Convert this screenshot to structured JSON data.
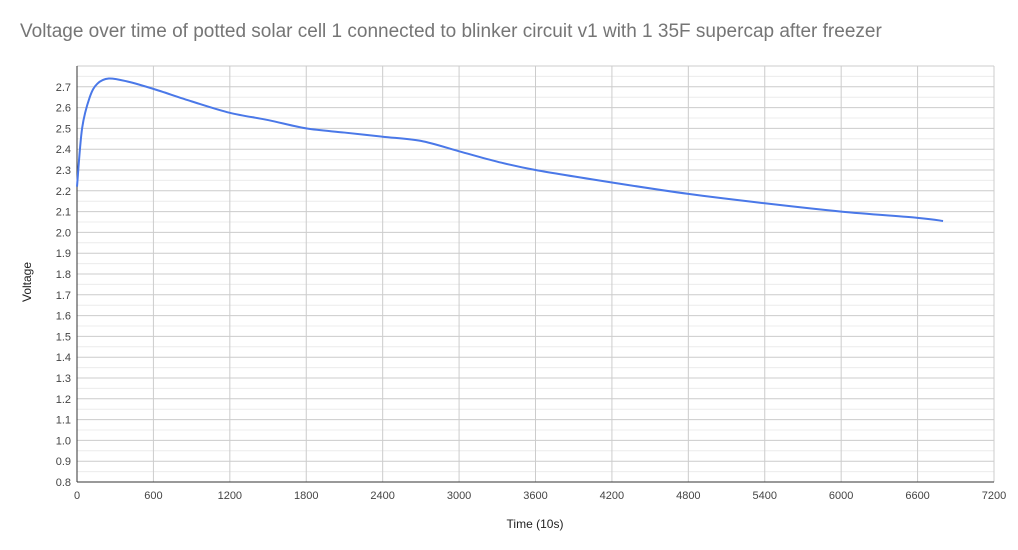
{
  "chart_data": {
    "type": "line",
    "title": "Voltage over time of potted solar cell 1 connected to blinker circuit v1 with 1 35F supercap after freezer",
    "xlabel": "Time (10s)",
    "ylabel": "Voltage",
    "xlim": [
      0,
      7200
    ],
    "ylim": [
      0.8,
      2.8
    ],
    "xticks": [
      0,
      600,
      1200,
      1800,
      2400,
      3000,
      3600,
      4200,
      4800,
      5400,
      6000,
      6600,
      7200
    ],
    "yticks": [
      "0.8",
      "0.9",
      "1.0",
      "1.1",
      "1.2",
      "1.3",
      "1.4",
      "1.5",
      "1.6",
      "1.7",
      "1.8",
      "1.9",
      "2.0",
      "2.1",
      "2.2",
      "2.3",
      "2.4",
      "2.5",
      "2.6",
      "2.7"
    ],
    "grid": true,
    "line_color": "#4a78e8",
    "series": [
      {
        "x": [
          0,
          40,
          100,
          160,
          250,
          400,
          600,
          900,
          1200,
          1500,
          1800,
          2100,
          2400,
          2700,
          3000,
          3300,
          3600,
          4200,
          4800,
          5400,
          6000,
          6600,
          6800
        ],
        "y": [
          2.22,
          2.5,
          2.65,
          2.715,
          2.74,
          2.725,
          2.69,
          2.63,
          2.575,
          2.54,
          2.5,
          2.48,
          2.46,
          2.44,
          2.39,
          2.34,
          2.3,
          2.24,
          2.185,
          2.14,
          2.1,
          2.07,
          2.055
        ]
      }
    ]
  }
}
